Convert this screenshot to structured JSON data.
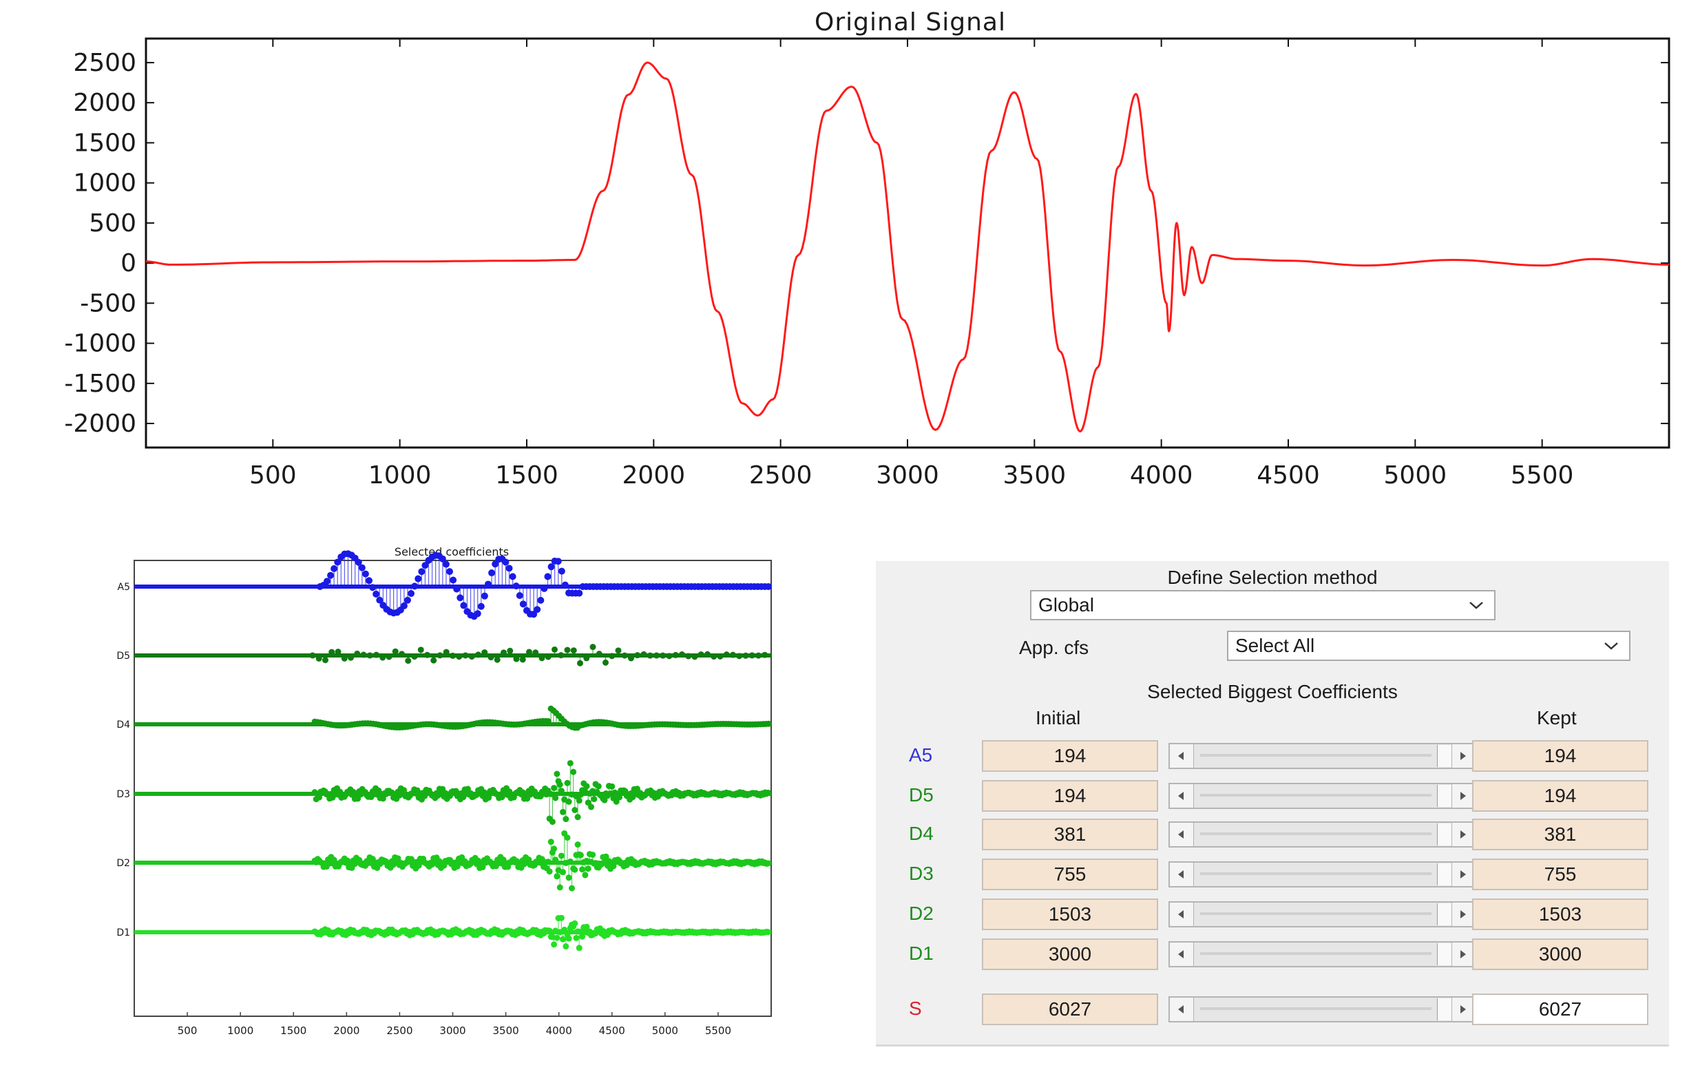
{
  "top_chart": {
    "title": "Original Signal",
    "x_ticks": [
      "500",
      "1000",
      "1500",
      "2000",
      "2500",
      "3000",
      "3500",
      "4000",
      "4500",
      "5000",
      "5500"
    ],
    "y_ticks": [
      "2500",
      "2000",
      "1500",
      "1000",
      "500",
      "0",
      "-500",
      "-1000",
      "-1500",
      "-2000"
    ],
    "colors": {
      "line": "#ff1a1a"
    }
  },
  "bottom_chart": {
    "title": "Selected coefficients",
    "row_labels": [
      "A5",
      "D5",
      "D4",
      "D3",
      "D2",
      "D1"
    ],
    "x_ticks": [
      "500",
      "1000",
      "1500",
      "2000",
      "2500",
      "3000",
      "3500",
      "4000",
      "4500",
      "5000",
      "5500"
    ],
    "colors": {
      "A5": "#1a1ae6",
      "D5": "#0f7a0f",
      "D4": "#129a12",
      "D3": "#16b016",
      "D2": "#1cc81c",
      "D1": "#24e024"
    }
  },
  "panel": {
    "heading": "Define Selection method",
    "method_value": "Global",
    "app_cfs_label": "App. cfs",
    "app_cfs_value": "Select All",
    "subheading": "Selected Biggest Coefficients",
    "initial_header": "Initial",
    "kept_header": "Kept",
    "rows": [
      {
        "label": "A5",
        "initial": "194",
        "kept": "194",
        "color": "#3434d0"
      },
      {
        "label": "D5",
        "initial": "194",
        "kept": "194",
        "color": "#1e8c1e"
      },
      {
        "label": "D4",
        "initial": "381",
        "kept": "381",
        "color": "#1e8c1e"
      },
      {
        "label": "D3",
        "initial": "755",
        "kept": "755",
        "color": "#1e8c1e"
      },
      {
        "label": "D2",
        "initial": "1503",
        "kept": "1503",
        "color": "#1e8c1e"
      },
      {
        "label": "D1",
        "initial": "3000",
        "kept": "3000",
        "color": "#1e8c1e"
      }
    ],
    "total": {
      "label": "S",
      "initial": "6027",
      "kept": "6027",
      "color": "#e0202a"
    },
    "icons": {
      "dropdown": "chevron-down-icon",
      "left": "arrow-left-icon",
      "right": "arrow-right-icon"
    }
  },
  "chart_data": [
    {
      "type": "line",
      "title": "Original Signal",
      "xlabel": "",
      "ylabel": "",
      "xlim": [
        0,
        6000
      ],
      "ylim": [
        -2300,
        2800
      ],
      "grid": false,
      "x": [
        0,
        100,
        500,
        1000,
        1500,
        1690,
        1800,
        1900,
        1975,
        2050,
        2150,
        2250,
        2350,
        2410,
        2470,
        2570,
        2680,
        2780,
        2880,
        2980,
        3110,
        3220,
        3330,
        3420,
        3510,
        3600,
        3680,
        3750,
        3830,
        3900,
        3960,
        4020,
        4030,
        4060,
        4090,
        4120,
        4160,
        4200,
        4300,
        4500,
        4800,
        5150,
        5500,
        5700,
        6000
      ],
      "y": [
        20,
        -20,
        10,
        20,
        30,
        40,
        900,
        2100,
        2500,
        2300,
        1100,
        -600,
        -1750,
        -1900,
        -1700,
        100,
        1900,
        2200,
        1500,
        -700,
        -2080,
        -1200,
        1400,
        2130,
        1300,
        -1100,
        -2100,
        -1300,
        1200,
        2110,
        900,
        -500,
        -850,
        500,
        -400,
        200,
        -250,
        100,
        50,
        30,
        -30,
        40,
        -30,
        50,
        -20
      ]
    },
    {
      "type": "scatter",
      "title": "Selected coefficients",
      "xlabel": "",
      "ylabel": "",
      "xlim": [
        0,
        6000
      ],
      "grid": false,
      "categories": [
        "A5",
        "D5",
        "D4",
        "D3",
        "D2",
        "D1"
      ],
      "series": [
        {
          "name": "A5",
          "values": [
            {
              "x": 1750,
              "y": 0
            },
            {
              "x": 2000,
              "y": 1
            },
            {
              "x": 2450,
              "y": -0.8
            },
            {
              "x": 2850,
              "y": 0.95
            },
            {
              "x": 3200,
              "y": -0.9
            },
            {
              "x": 3450,
              "y": 0.85
            },
            {
              "x": 3750,
              "y": -0.85
            },
            {
              "x": 3980,
              "y": 0.8
            },
            {
              "x": 4100,
              "y": -0.2
            }
          ]
        },
        {
          "name": "D5",
          "values": [
            {
              "x": 1680,
              "y": 0.1
            },
            {
              "x": 4050,
              "y": 1
            },
            {
              "x": 4120,
              "y": -0.6
            }
          ]
        },
        {
          "name": "D4",
          "values": [
            {
              "x": 1700,
              "y": 0.3
            },
            {
              "x": 4050,
              "y": 1
            },
            {
              "x": 4300,
              "y": 0.4
            }
          ]
        },
        {
          "name": "D3",
          "values": [
            {
              "x": 1700,
              "y": 0.5
            },
            {
              "x": 4050,
              "y": 1
            },
            {
              "x": 4400,
              "y": 0.6
            }
          ]
        },
        {
          "name": "D2",
          "values": [
            {
              "x": 1700,
              "y": 0.4
            },
            {
              "x": 4050,
              "y": 1
            },
            {
              "x": 4400,
              "y": 0.5
            }
          ]
        },
        {
          "name": "D1",
          "values": [
            {
              "x": 1700,
              "y": 0.3
            },
            {
              "x": 4050,
              "y": 1
            },
            {
              "x": 4400,
              "y": 0.4
            }
          ]
        }
      ]
    }
  ]
}
